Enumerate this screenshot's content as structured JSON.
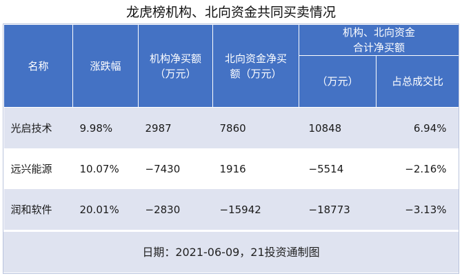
{
  "title": "龙虎榜机构、北向资金共同买卖情况",
  "header": {
    "name": "名称",
    "change": "涨跌幅",
    "inst_line1": "机构净买额",
    "inst_line2": "（万元）",
    "north_line1": "北向资金净买",
    "north_line2": "额（万元）",
    "combined_line1": "机构、北向资金",
    "combined_line2": "合计净买额",
    "combined_unit": "（万元）",
    "share": "占总成交比"
  },
  "rows": [
    {
      "name": "光启技术",
      "change": "9.98%",
      "inst": "2987",
      "north": "7860",
      "total": "10848",
      "share": "6.94%"
    },
    {
      "name": "远兴能源",
      "change": "10.07%",
      "inst": "−7430",
      "north": "1916",
      "total": "−5514",
      "share": "−2.16%"
    },
    {
      "name": "润和软件",
      "change": "20.01%",
      "inst": "−2830",
      "north": "−15942",
      "total": "−18773",
      "share": "−3.13%"
    }
  ],
  "footer": "日期：2021-06-09，21投资通制图",
  "colors": {
    "header": "#4472c4",
    "stripe": "#dfe3f0"
  }
}
